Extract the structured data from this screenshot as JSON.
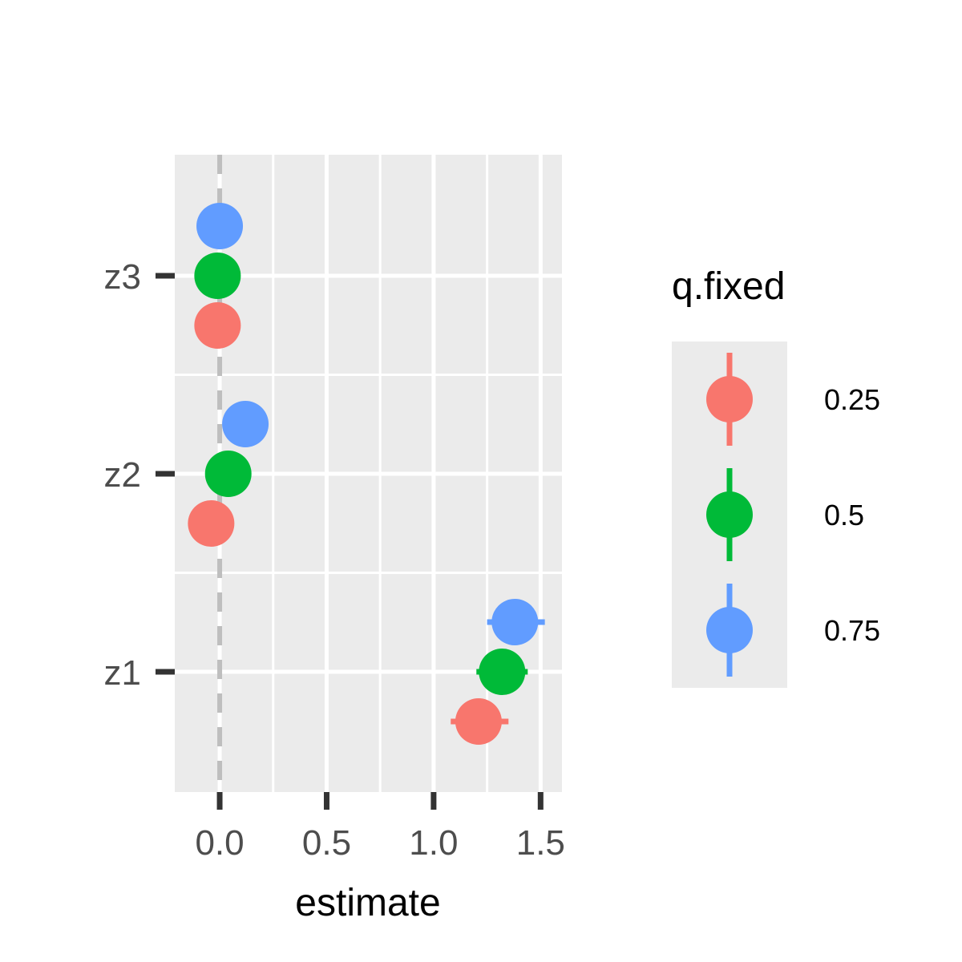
{
  "chart_data": {
    "type": "scatter",
    "xlabel": "estimate",
    "ylabel": "",
    "categories": [
      "z1",
      "z2",
      "z3"
    ],
    "x_ticks": [
      "0.0",
      "0.5",
      "1.0",
      "1.5"
    ],
    "xlim": [
      -0.21,
      1.6
    ],
    "reference_line": {
      "x": 0,
      "style": "dashed",
      "color": "#bebebe"
    },
    "grid": true,
    "legend": {
      "title": "q.fixed",
      "placement": "right"
    },
    "series": [
      {
        "name": "0.25",
        "color": "#F8766D",
        "points": [
          {
            "term": "z1",
            "estimate": 1.21,
            "low": 1.08,
            "high": 1.35
          },
          {
            "term": "z2",
            "estimate": -0.04,
            "low": -0.05,
            "high": -0.03
          },
          {
            "term": "z3",
            "estimate": -0.01,
            "low": -0.02,
            "high": 0.0
          }
        ]
      },
      {
        "name": "0.5",
        "color": "#00BA38",
        "points": [
          {
            "term": "z1",
            "estimate": 1.32,
            "low": 1.2,
            "high": 1.44
          },
          {
            "term": "z2",
            "estimate": 0.04,
            "low": 0.03,
            "high": 0.05
          },
          {
            "term": "z3",
            "estimate": -0.01,
            "low": -0.02,
            "high": 0.0
          }
        ]
      },
      {
        "name": "0.75",
        "color": "#619CFF",
        "points": [
          {
            "term": "z1",
            "estimate": 1.38,
            "low": 1.25,
            "high": 1.52
          },
          {
            "term": "z2",
            "estimate": 0.12,
            "low": 0.11,
            "high": 0.13
          },
          {
            "term": "z3",
            "estimate": 0.0,
            "low": -0.01,
            "high": 0.01
          }
        ]
      }
    ]
  }
}
